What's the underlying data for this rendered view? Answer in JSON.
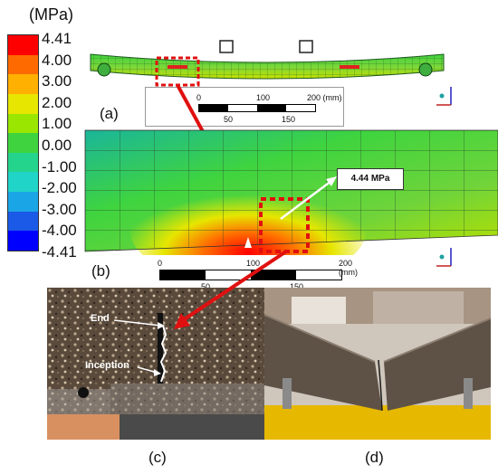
{
  "legend": {
    "unit": "(MPa)",
    "ticks": [
      "4.41",
      "4.00",
      "3.00",
      "2.00",
      "1.00",
      "0.00",
      "-1.00",
      "-2.00",
      "-3.00",
      "-4.00",
      "-4.41"
    ],
    "colors": [
      "#ff0000",
      "#ff6a00",
      "#ffb000",
      "#e6e600",
      "#9ae600",
      "#3fd43f",
      "#25d48c",
      "#20d4c8",
      "#1aa6e6",
      "#1a5ae6",
      "#0000ff"
    ]
  },
  "panels": {
    "a": "(a)",
    "b": "(b)",
    "c": "(c)",
    "d": "(d)"
  },
  "scale_a": {
    "t0": "0",
    "t100": "100",
    "t200": "200 (mm)",
    "t50": "50",
    "t150": "150"
  },
  "scale_b": {
    "t0": "0",
    "t100": "100",
    "t200": "200 (mm)",
    "t50": "50",
    "t150": "150"
  },
  "callout": "4.44 MPa",
  "photo_c": {
    "end_label": "End",
    "inception_label": "Inception"
  }
}
